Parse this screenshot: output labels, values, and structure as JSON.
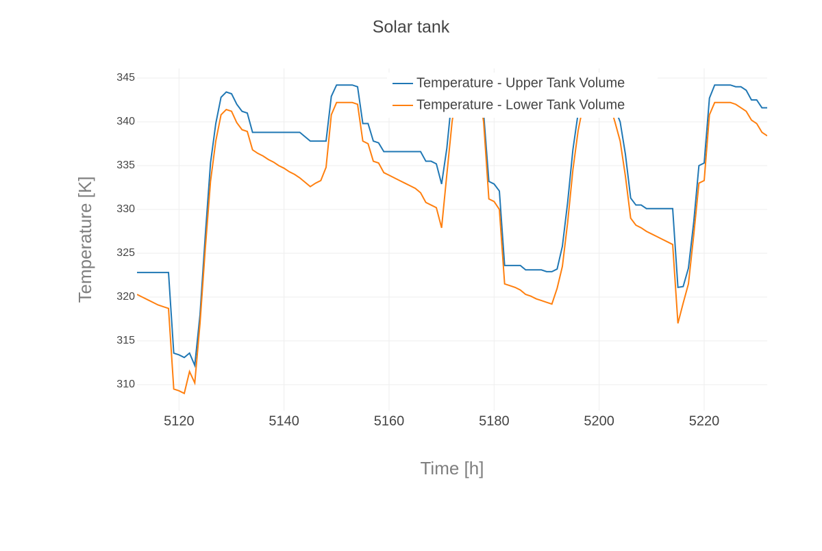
{
  "chart_data": {
    "type": "line",
    "title": "Solar tank",
    "x_label": "Time [h]",
    "y_label": "Temperature [K]",
    "x": [
      5112,
      5113,
      5114,
      5115,
      5116,
      5117,
      5118,
      5119,
      5120,
      5121,
      5122,
      5123,
      5124,
      5125,
      5126,
      5127,
      5128,
      5129,
      5130,
      5131,
      5132,
      5133,
      5134,
      5135,
      5136,
      5137,
      5138,
      5139,
      5140,
      5141,
      5142,
      5143,
      5144,
      5145,
      5146,
      5147,
      5148,
      5149,
      5150,
      5151,
      5152,
      5153,
      5154,
      5155,
      5156,
      5157,
      5158,
      5159,
      5160,
      5161,
      5162,
      5163,
      5164,
      5165,
      5166,
      5167,
      5168,
      5169,
      5170,
      5171,
      5172,
      5173,
      5174,
      5175,
      5176,
      5177,
      5178,
      5179,
      5180,
      5181,
      5182,
      5183,
      5184,
      5185,
      5186,
      5187,
      5188,
      5189,
      5190,
      5191,
      5192,
      5193,
      5194,
      5195,
      5196,
      5197,
      5198,
      5199,
      5200,
      5201,
      5202,
      5203,
      5204,
      5205,
      5206,
      5207,
      5208,
      5209,
      5210,
      5211,
      5212,
      5213,
      5214,
      5215,
      5216,
      5217,
      5218,
      5219,
      5220,
      5221,
      5222,
      5223,
      5224,
      5225,
      5226,
      5227,
      5228,
      5229,
      5230,
      5231,
      5232
    ],
    "series": [
      {
        "name": "Temperature - Upper Tank Volume",
        "color": "#1f77b4",
        "values": [
          322.8,
          322.8,
          322.8,
          322.8,
          322.8,
          322.8,
          322.8,
          313.6,
          313.4,
          313.1,
          313.6,
          312.2,
          318,
          327,
          335.3,
          339.8,
          342.8,
          343.4,
          343.2,
          342,
          341.2,
          341,
          338.8,
          338.8,
          338.8,
          338.8,
          338.8,
          338.8,
          338.8,
          338.8,
          338.8,
          338.8,
          338.3,
          337.8,
          337.8,
          337.8,
          337.8,
          342.9,
          344.2,
          344.2,
          344.2,
          344.2,
          344,
          339.8,
          339.8,
          337.8,
          337.6,
          336.6,
          336.6,
          336.6,
          336.6,
          336.6,
          336.6,
          336.6,
          336.6,
          335.5,
          335.5,
          335.2,
          332.9,
          337,
          343,
          345,
          345.5,
          345.5,
          345.5,
          345,
          341,
          333.2,
          332.9,
          332.1,
          323.6,
          323.6,
          323.6,
          323.6,
          323.1,
          323.1,
          323.1,
          323.1,
          322.9,
          322.9,
          323.2,
          325.8,
          330.8,
          336.8,
          341,
          344,
          344,
          344,
          344,
          344,
          344,
          341.5,
          340,
          336.3,
          331.3,
          330.5,
          330.5,
          330.1,
          330.1,
          330.1,
          330.1,
          330.1,
          330.1,
          321.1,
          321.2,
          323.3,
          328.5,
          335,
          335.3,
          342.7,
          344.2,
          344.2,
          344.2,
          344.2,
          344,
          344,
          343.6,
          342.5,
          342.5,
          341.6,
          341.6
        ]
      },
      {
        "name": "Temperature - Lower Tank Volume",
        "color": "#ff7f0e",
        "values": [
          320.3,
          320,
          319.7,
          319.4,
          319.1,
          318.9,
          318.7,
          309.5,
          309.3,
          309,
          311.5,
          310.2,
          317,
          325.5,
          333.2,
          337.8,
          340.8,
          341.4,
          341.2,
          339.9,
          339.1,
          338.9,
          336.8,
          336.4,
          336.1,
          335.7,
          335.4,
          335,
          334.7,
          334.3,
          334,
          333.6,
          333.1,
          332.6,
          333,
          333.3,
          334.8,
          340.8,
          342.2,
          342.2,
          342.2,
          342.2,
          342,
          337.8,
          337.5,
          335.5,
          335.3,
          334.2,
          333.9,
          333.6,
          333.3,
          333,
          332.7,
          332.4,
          331.9,
          330.8,
          330.5,
          330.2,
          327.9,
          334,
          340,
          344,
          345,
          345,
          345,
          344,
          340,
          331.2,
          330.9,
          330,
          321.5,
          321.3,
          321.1,
          320.8,
          320.3,
          320.1,
          319.8,
          319.6,
          319.4,
          319.2,
          321,
          323.5,
          328.5,
          334.5,
          339,
          342,
          343,
          343,
          343,
          343,
          342,
          340,
          337.8,
          333.8,
          329,
          328.2,
          327.9,
          327.5,
          327.2,
          326.9,
          326.6,
          326.3,
          326,
          317,
          319.3,
          321.5,
          327,
          333,
          333.3,
          340.8,
          342.2,
          342.2,
          342.2,
          342.2,
          342,
          341.6,
          341.2,
          340.2,
          339.8,
          338.8,
          338.4
        ]
      }
    ],
    "xlim": [
      5112,
      5232
    ],
    "ylim": [
      307.03,
      346.09
    ],
    "xticks": [
      5120,
      5140,
      5160,
      5180,
      5200,
      5220
    ],
    "yticks": [
      310,
      315,
      320,
      325,
      330,
      335,
      340,
      345
    ],
    "grid": true,
    "legend": "top-right"
  }
}
